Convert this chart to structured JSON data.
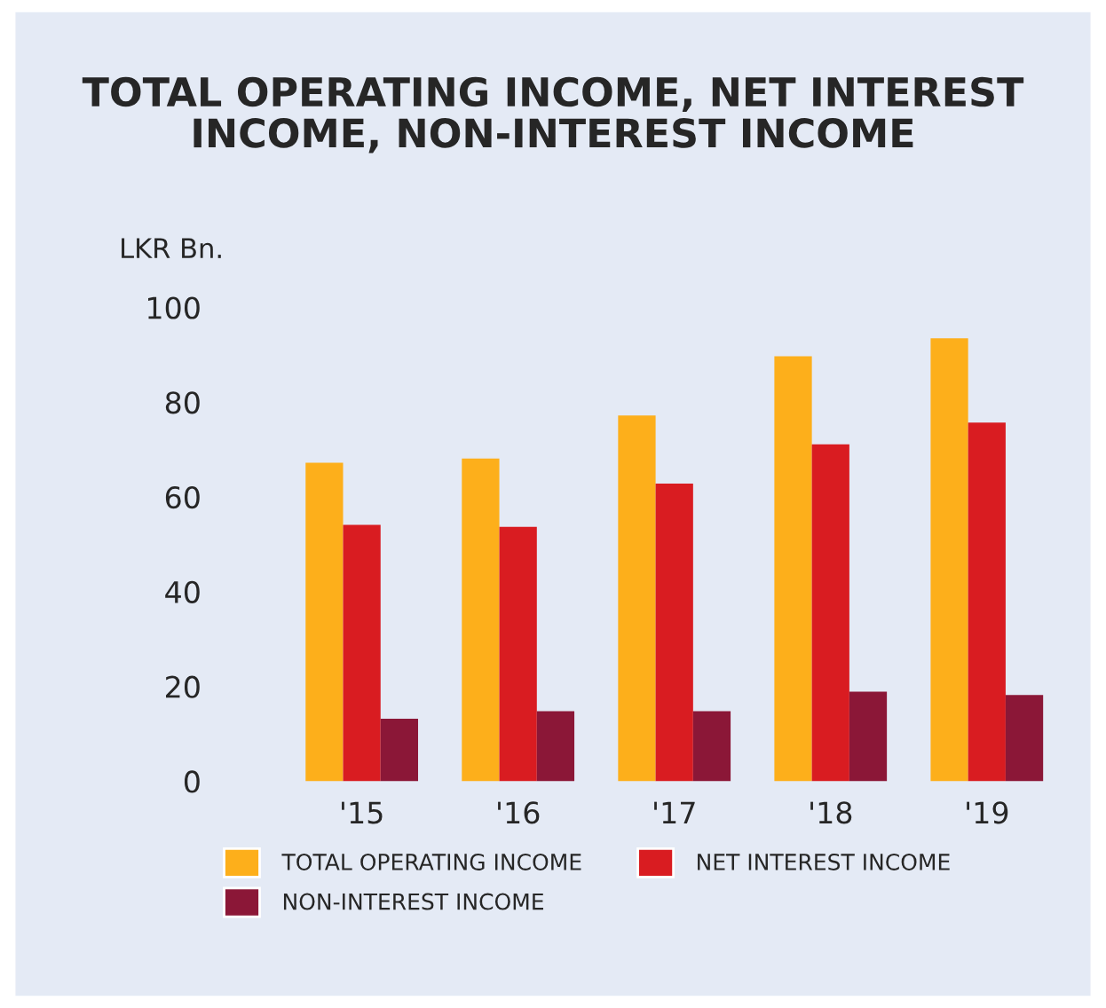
{
  "chart_data": {
    "type": "bar",
    "title": "TOTAL OPERATING INCOME, NET INTEREST\nINCOME, NON-INTEREST INCOME",
    "ylabel": "LKR Bn.",
    "categories": [
      "'15",
      "'16",
      "'17",
      "'18",
      "'19"
    ],
    "series": [
      {
        "name": "TOTAL OPERATING INCOME",
        "color": "#fdaf1b",
        "values": [
          67.2,
          68.1,
          77.2,
          89.7,
          93.5
        ]
      },
      {
        "name": "NET INTEREST INCOME",
        "color": "#d91c21",
        "values": [
          54.1,
          53.7,
          62.8,
          71.1,
          75.7
        ]
      },
      {
        "name": "NON-INTEREST INCOME",
        "color": "#8b1737",
        "values": [
          13.2,
          14.8,
          14.8,
          18.9,
          18.2
        ]
      }
    ],
    "ylim": [
      0,
      100
    ],
    "yticks": [
      0,
      20,
      40,
      60,
      80,
      100
    ],
    "grid": false,
    "legend": "bottom"
  }
}
